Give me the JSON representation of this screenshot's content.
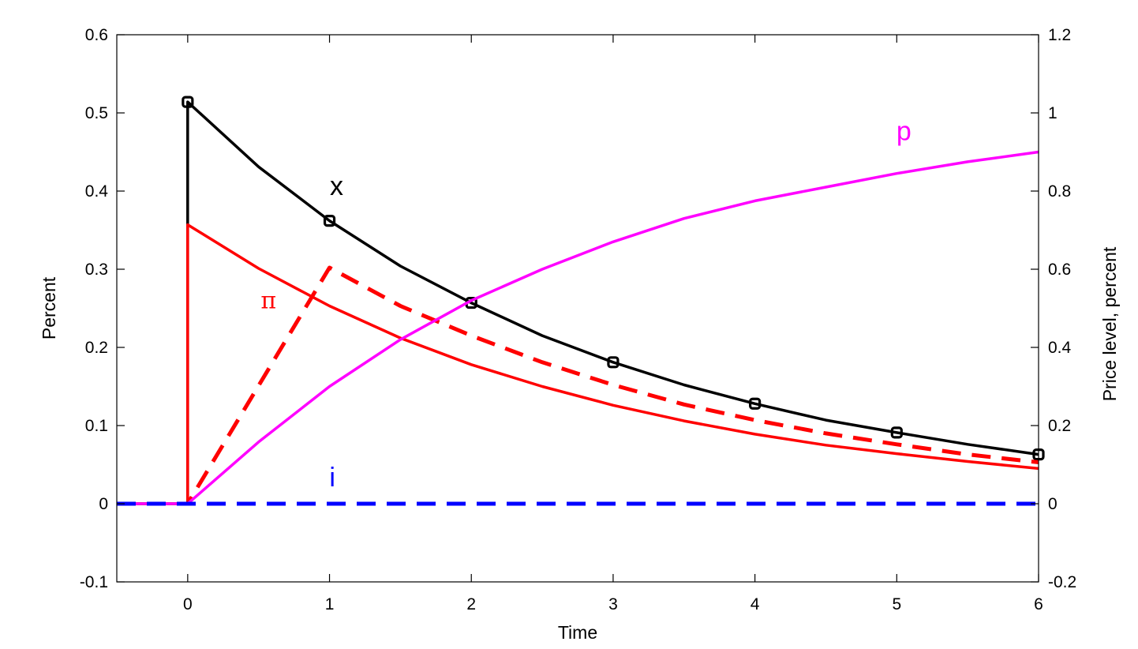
{
  "chart_data": {
    "type": "line",
    "xlabel": "Time",
    "ylabel_left": "Percent",
    "ylabel_right": "Price level, percent",
    "xlim": [
      -0.5,
      6
    ],
    "ylim_left": [
      -0.1,
      0.6
    ],
    "ylim_right": [
      -0.2,
      1.2
    ],
    "x_ticks": [
      0,
      1,
      2,
      3,
      4,
      5,
      6
    ],
    "x_tick_labels": [
      "0",
      "1",
      "2",
      "3",
      "4",
      "5",
      "6"
    ],
    "y_left_ticks": [
      -0.1,
      0,
      0.1,
      0.2,
      0.3,
      0.4,
      0.5,
      0.6
    ],
    "y_left_tick_labels": [
      "-0.1",
      "0",
      "0.1",
      "0.2",
      "0.3",
      "0.4",
      "0.5",
      "0.6"
    ],
    "y_right_ticks": [
      -0.2,
      0,
      0.2,
      0.4,
      0.6,
      0.8,
      1,
      1.2
    ],
    "y_right_tick_labels": [
      "-0.2",
      "0",
      "0.2",
      "0.4",
      "0.6",
      "0.8",
      "1",
      "1.2"
    ],
    "grid": false,
    "series": [
      {
        "name": "x",
        "label": "x",
        "axis": "left",
        "color": "#000000",
        "style": "solid",
        "markers": "square",
        "x": [
          -0.5,
          0,
          0,
          0.5,
          1,
          1.5,
          2,
          2.5,
          3,
          3.5,
          4,
          4.5,
          5,
          5.5,
          6
        ],
        "y": [
          0,
          0,
          0.514,
          0.431,
          0.362,
          0.304,
          0.257,
          0.215,
          0.181,
          0.152,
          0.128,
          0.107,
          0.091,
          0.076,
          0.063
        ]
      },
      {
        "name": "π",
        "label": "π",
        "axis": "left",
        "color": "#ff0000",
        "style": "solid",
        "x": [
          -0.5,
          0,
          0,
          0.5,
          1,
          1.5,
          2,
          2.5,
          3,
          3.5,
          4,
          4.5,
          5,
          5.5,
          6
        ],
        "y": [
          0,
          0,
          0.357,
          0.301,
          0.253,
          0.212,
          0.178,
          0.15,
          0.126,
          0.106,
          0.089,
          0.075,
          0.064,
          0.054,
          0.045
        ]
      },
      {
        "name": "π dashed",
        "label": "",
        "axis": "left",
        "color": "#ff0000",
        "style": "dashed",
        "x": [
          -0.5,
          0,
          1,
          1.5,
          2,
          2.5,
          3,
          3.5,
          4,
          4.5,
          5,
          5.5,
          6
        ],
        "y": [
          0,
          0,
          0.302,
          0.253,
          0.215,
          0.181,
          0.152,
          0.127,
          0.107,
          0.09,
          0.076,
          0.063,
          0.053
        ]
      },
      {
        "name": "p",
        "label": "p",
        "axis": "right",
        "color": "#ff00ff",
        "style": "solid",
        "x": [
          -0.5,
          0,
          0.5,
          1,
          1.5,
          2,
          2.5,
          3,
          3.5,
          4,
          4.5,
          5,
          5.5,
          6
        ],
        "y": [
          0,
          0,
          0.158,
          0.3,
          0.42,
          0.52,
          0.6,
          0.67,
          0.73,
          0.775,
          0.81,
          0.845,
          0.875,
          0.9
        ]
      },
      {
        "name": "i",
        "label": "i",
        "axis": "left",
        "color": "#0000ff",
        "style": "dashed",
        "x": [
          -0.5,
          6
        ],
        "y": [
          0,
          0
        ]
      }
    ],
    "annotations": [
      {
        "text": "x",
        "x": 1.05,
        "y": 0.395,
        "axis": "left",
        "color": "#000000"
      },
      {
        "text": "π",
        "x": 0.57,
        "y": 0.25,
        "axis": "left",
        "color": "#ff0000"
      },
      {
        "text": "p",
        "x": 5.05,
        "y": 0.93,
        "axis": "right",
        "color": "#ff00ff"
      },
      {
        "text": "i",
        "x": 1.02,
        "y": 0.022,
        "axis": "left",
        "color": "#0000ff"
      }
    ]
  }
}
